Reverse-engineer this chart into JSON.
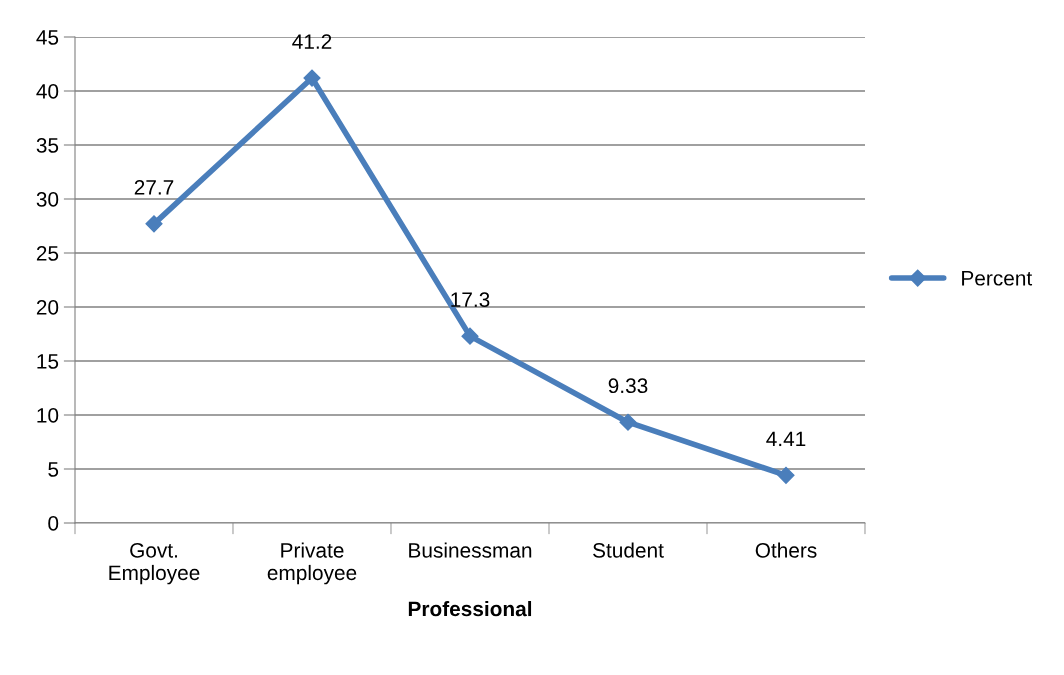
{
  "chart_data": {
    "type": "line",
    "xlabel": "Professional",
    "categories": [
      "Govt.\nEmployee",
      "Private\nemployee",
      "Businessman",
      "Student",
      "Others"
    ],
    "series": [
      {
        "name": "Percent",
        "color": "#4a7ebb",
        "values": [
          27.7,
          41.2,
          17.3,
          9.33,
          4.41
        ]
      }
    ],
    "ylim": [
      0,
      45
    ],
    "yticks": [
      0,
      5,
      10,
      15,
      20,
      25,
      30,
      35,
      40,
      45
    ],
    "grid": "y",
    "legend": "right",
    "marker": "diamond",
    "line_style": "solid",
    "data_labels": true
  }
}
